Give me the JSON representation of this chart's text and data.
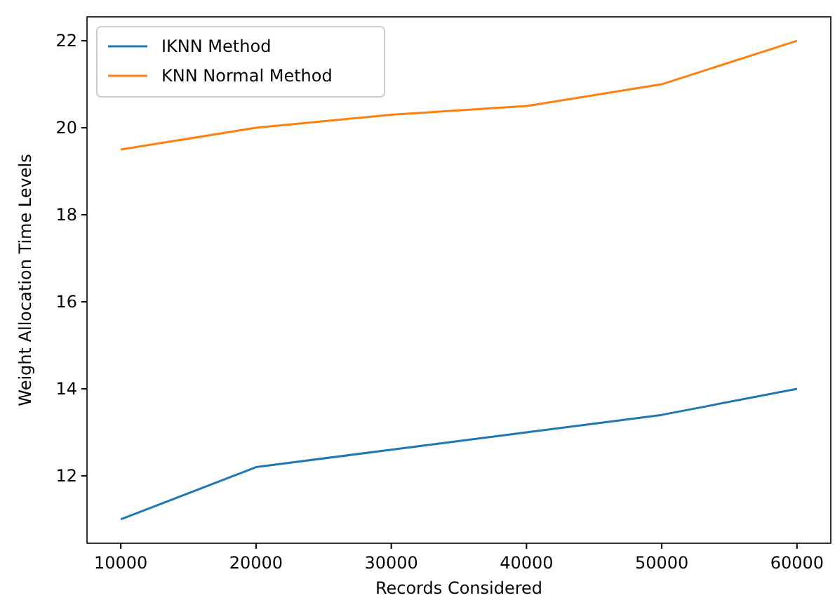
{
  "chart_data": {
    "type": "line",
    "xlabel": "Records Considered",
    "ylabel": "Weight Allocation Time Levels",
    "x": [
      10000,
      20000,
      30000,
      40000,
      50000,
      60000
    ],
    "series": [
      {
        "name": "IKNN Method",
        "color": "#1f77b4",
        "values": [
          11,
          12.2,
          12.6,
          13.0,
          13.4,
          14.0
        ]
      },
      {
        "name": "KNN Normal Method",
        "color": "#ff7f0e",
        "values": [
          19.5,
          20.0,
          20.3,
          20.5,
          21.0,
          22.0
        ]
      }
    ],
    "xlim": [
      7500,
      62500
    ],
    "xticks": [
      10000,
      20000,
      30000,
      40000,
      50000,
      60000
    ],
    "ylim": [
      10.45,
      22.55
    ],
    "yticks": [
      12,
      14,
      16,
      18,
      20,
      22
    ],
    "legend": "top left",
    "grid": false,
    "marker": "none",
    "line_style": "solid"
  }
}
